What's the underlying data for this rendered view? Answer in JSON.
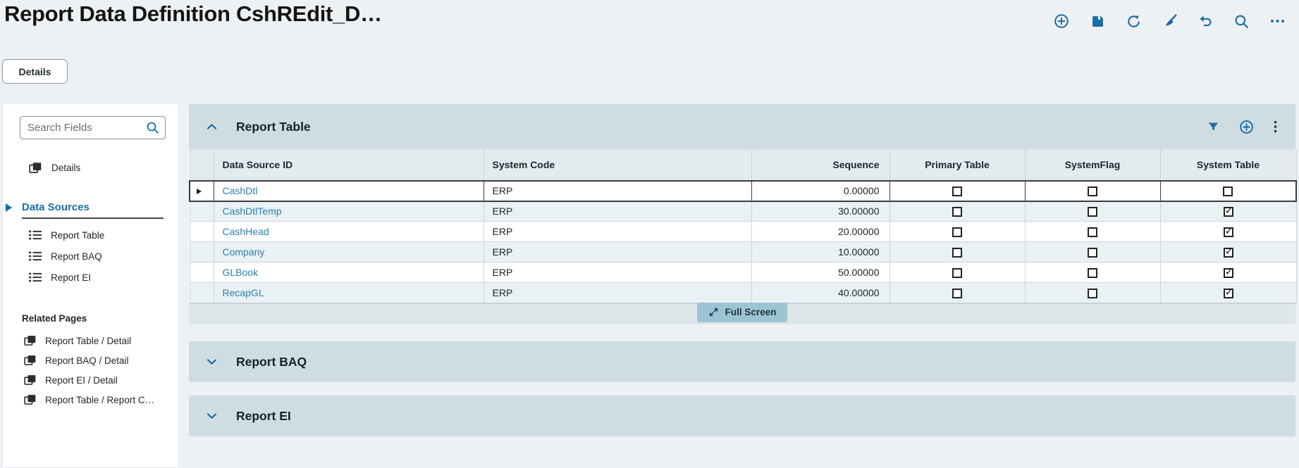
{
  "page": {
    "title": "Report Data Definition CshREdit_D…"
  },
  "toolbar": {
    "icons": [
      "add",
      "save",
      "refresh",
      "clear",
      "undo",
      "search",
      "overflow-menu"
    ]
  },
  "view_tabs": {
    "details": "Details"
  },
  "sidebar": {
    "search": {
      "placeholder": "Search Fields"
    },
    "details_label": "Details",
    "sections": [
      {
        "title": "Data Sources",
        "active": true,
        "items": [
          "Report Table",
          "Report BAQ",
          "Report EI"
        ]
      },
      {
        "title": "Related Pages",
        "active": false,
        "items": [
          "Report Table / Detail",
          "Report BAQ / Detail",
          "Report EI / Detail",
          "Report Table / Report C…"
        ]
      }
    ]
  },
  "panels": {
    "report_table": {
      "title": "Report Table",
      "expanded": true,
      "header_icons": [
        "filter",
        "add-row",
        "more-vertical"
      ],
      "full_screen_label": "Full Screen",
      "grid": {
        "columns": [
          {
            "key": "data_source_id",
            "label": "Data Source ID",
            "align": "left",
            "type": "link"
          },
          {
            "key": "system_code",
            "label": "System Code",
            "align": "left",
            "type": "text"
          },
          {
            "key": "sequence",
            "label": "Sequence",
            "align": "right",
            "type": "text"
          },
          {
            "key": "primary_table",
            "label": "Primary Table",
            "align": "center",
            "type": "checkbox"
          },
          {
            "key": "system_flag",
            "label": "SystemFlag",
            "align": "center",
            "type": "checkbox"
          },
          {
            "key": "system_table",
            "label": "System Table",
            "align": "center",
            "type": "checkbox"
          }
        ],
        "rows": [
          {
            "selected": true,
            "data_source_id": "CashDtl",
            "system_code": "ERP",
            "sequence": "0.00000",
            "primary_table": false,
            "system_flag": false,
            "system_table": false
          },
          {
            "selected": false,
            "data_source_id": "CashDtlTemp",
            "system_code": "ERP",
            "sequence": "30.00000",
            "primary_table": false,
            "system_flag": false,
            "system_table": true
          },
          {
            "selected": false,
            "data_source_id": "CashHead",
            "system_code": "ERP",
            "sequence": "20.00000",
            "primary_table": false,
            "system_flag": false,
            "system_table": true
          },
          {
            "selected": false,
            "data_source_id": "Company",
            "system_code": "ERP",
            "sequence": "10.00000",
            "primary_table": false,
            "system_flag": false,
            "system_table": true
          },
          {
            "selected": false,
            "data_source_id": "GLBook",
            "system_code": "ERP",
            "sequence": "50.00000",
            "primary_table": false,
            "system_flag": false,
            "system_table": true
          },
          {
            "selected": false,
            "data_source_id": "RecapGL",
            "system_code": "ERP",
            "sequence": "40.00000",
            "primary_table": false,
            "system_flag": false,
            "system_table": true
          }
        ]
      }
    },
    "report_baq": {
      "title": "Report BAQ",
      "expanded": false
    },
    "report_ei": {
      "title": "Report EI",
      "expanded": false
    }
  },
  "colors": {
    "accent": "#1a6da6",
    "link": "#2f7fae",
    "page_background": "#edf1f4",
    "panel_header_background": "#cfdde3",
    "grid_header_background": "#e4ebef",
    "alt_row_background": "#e9f1f5",
    "selected_row_border": "#3b3b3b",
    "fullscreen_button_background": "#9dc4d4"
  }
}
